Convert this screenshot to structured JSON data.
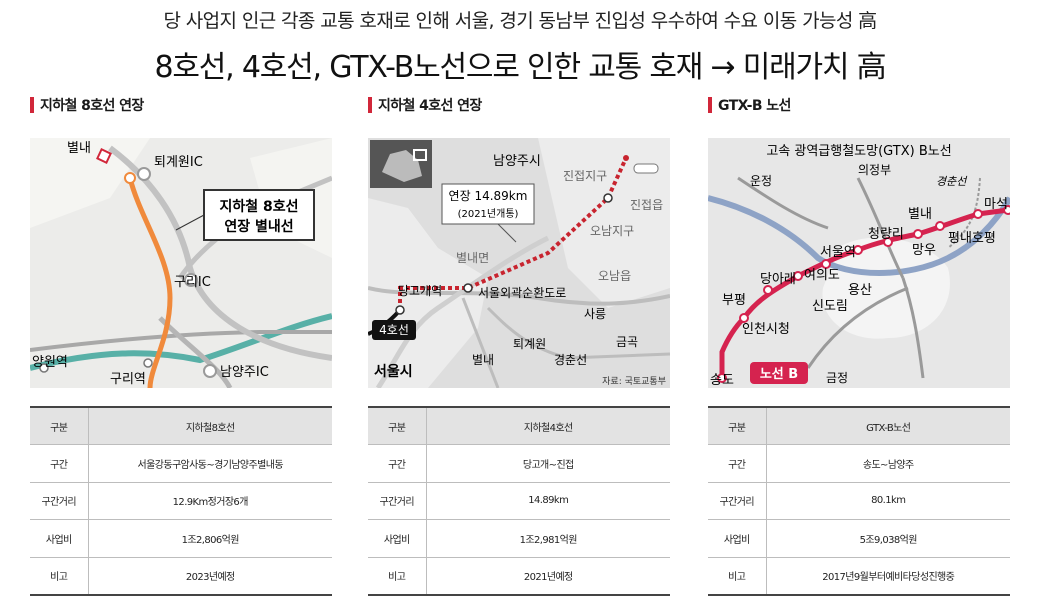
{
  "headline": {
    "line1": "당 사업지 인근 각종 교통 호재로 인해 서울, 경기 동남부 진입성 우수하여 수요 이동 가능성 高",
    "line2": "8호선, 4호선, GTX-B노선으로 인한 교통 호재 → 미래가치 高"
  },
  "panels": [
    {
      "title": "지하철 8호선 연장",
      "map": {
        "labels": {
          "byeolnae": "별내",
          "toegyewon_ic": "퇴계원IC",
          "callout_line1": "지하철 8호선",
          "callout_line2": "연장 별내선",
          "guri_ic": "구리IC",
          "yangwon": "양원역",
          "guri_station": "구리역",
          "namyangju_ic": "남양주IC"
        }
      },
      "table": {
        "header": [
          "구분",
          "지하철8호선"
        ],
        "rows": [
          [
            "구간",
            "서울강동구암사동~경기남양주별내동"
          ],
          [
            "구간거리",
            "12.9Km정거장6개"
          ],
          [
            "사업비",
            "1조2,806억원"
          ],
          [
            "비고",
            "2023년예정"
          ]
        ]
      }
    },
    {
      "title": "지하철 4호선 연장",
      "map": {
        "labels": {
          "namyangju_si": "남양주시",
          "jinjeop_jigu": "진접지구",
          "jinjeop_eup": "진접읍",
          "extension_line1": "연장 14.89km",
          "extension_line2": "(2021년개통)",
          "onam_jigu": "오남지구",
          "byeolnae_myeon": "별내면",
          "onam_eup": "오남읍",
          "danggogae": "당고개역",
          "ring_road": "서울외곽순환도로",
          "line4_badge": "4호선",
          "sareung": "사릉",
          "toegyewon": "퇴계원",
          "geumgok": "금곡",
          "byeolnae": "별내",
          "gyeongchun": "경춘선",
          "seoul_si": "서울시",
          "source": "자료: 국토교통부"
        }
      },
      "table": {
        "header": [
          "구분",
          "지하철4호선"
        ],
        "rows": [
          [
            "구간",
            "당고개~진접"
          ],
          [
            "구간거리",
            "14.89km"
          ],
          [
            "사업비",
            "1조2,981억원"
          ],
          [
            "비고",
            "2021년예정"
          ]
        ]
      }
    },
    {
      "title": "GTX-B 노선",
      "map": {
        "labels": {
          "map_title": "고속 광역급행철도망(GTX) B노선",
          "ujeong": "운정",
          "uijeongbu": "의정부",
          "gyeongchun": "경춘선",
          "maseok": "마석",
          "byeolnae": "별내",
          "pyeongnae_hopyeong": "평내호평",
          "cheongnyangni": "청량리",
          "mangu": "망우",
          "seoul_station": "서울역",
          "danga": "당아래",
          "yeouido": "여의도",
          "bupyeong": "부평",
          "yongsan": "용산",
          "sindorim": "신도림",
          "incheon_cityhall": "인천시청",
          "songdo": "송도",
          "line_b_badge": "노선 B",
          "geumjeong": "금정"
        }
      },
      "table": {
        "header": [
          "구분",
          "GTX-B노선"
        ],
        "rows": [
          [
            "구간",
            "송도~남양주"
          ],
          [
            "구간거리",
            "80.1km"
          ],
          [
            "사업비",
            "5조9,038억원"
          ],
          [
            "비고",
            "2017년9월부터예비타당성진행중"
          ]
        ]
      }
    }
  ],
  "colors": {
    "accent_bar": "#d1273a",
    "line8": "#f08a3c",
    "line4_extension": "#c8242f",
    "gtx_b": "#d5234f"
  }
}
